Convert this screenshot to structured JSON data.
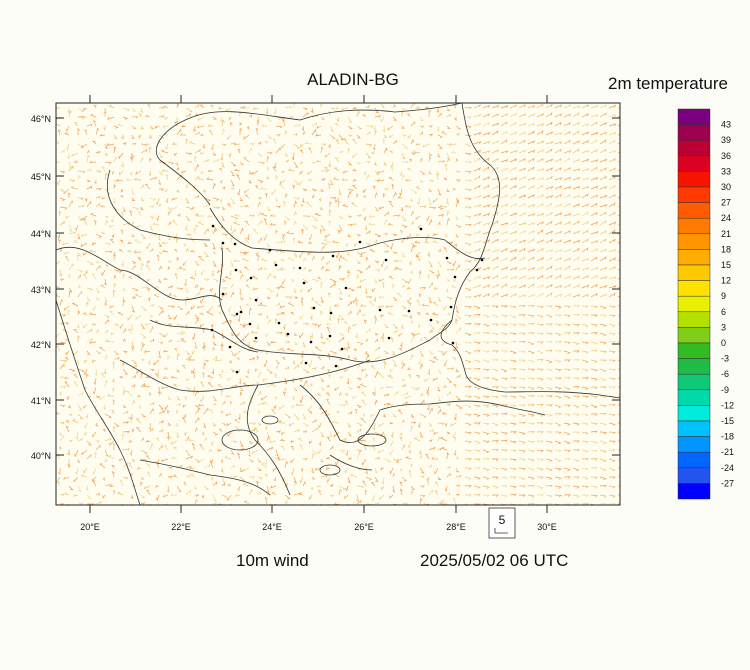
{
  "map": {
    "title": "ALADIN-BG",
    "wind_label": "10m wind",
    "valid_time": "2025/05/02 06 UTC",
    "reference_vector": "5",
    "lat_labels": [
      "46°N",
      "45°N",
      "44°N",
      "43°N",
      "42°N",
      "41°N",
      "40°N"
    ],
    "lon_labels": [
      "20°E",
      "22°E",
      "24°E",
      "26°E",
      "28°E",
      "30°E"
    ]
  },
  "legend": {
    "title": "2m temperature",
    "levels": [
      "43",
      "39",
      "36",
      "33",
      "30",
      "27",
      "24",
      "21",
      "18",
      "15",
      "12",
      "9",
      "6",
      "3",
      "0",
      "-3",
      "-6",
      "-9",
      "-12",
      "-15",
      "-18",
      "-21",
      "-24",
      "-27"
    ],
    "colors": [
      "#7a0080",
      "#9c0050",
      "#bb0033",
      "#dd0022",
      "#f81500",
      "#ff3a00",
      "#ff5c00",
      "#ff7a00",
      "#ff9500",
      "#ffae00",
      "#ffc900",
      "#ffe200",
      "#e8ef00",
      "#b4e000",
      "#7fcf1a",
      "#33bb22",
      "#1fbb44",
      "#10c977",
      "#00d9aa",
      "#00ecdc",
      "#00c2ff",
      "#0095ff",
      "#0066ff",
      "#2255ee",
      "#0000ff"
    ]
  }
}
